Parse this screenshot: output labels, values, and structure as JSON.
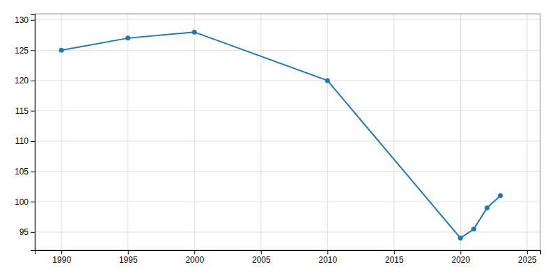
{
  "chart_data": {
    "type": "line",
    "x": [
      1990,
      1995,
      2000,
      2010,
      2020,
      2021,
      2022,
      2023
    ],
    "values": [
      125,
      127,
      128,
      120,
      94,
      95.5,
      99,
      101
    ],
    "marker": "circle",
    "xlim": [
      1988,
      2026
    ],
    "ylim": [
      92,
      131
    ],
    "xticks": [
      1990,
      1995,
      2000,
      2005,
      2010,
      2015,
      2020,
      2025
    ],
    "yticks": [
      95,
      100,
      105,
      110,
      115,
      120,
      125,
      130
    ],
    "grid": true
  }
}
